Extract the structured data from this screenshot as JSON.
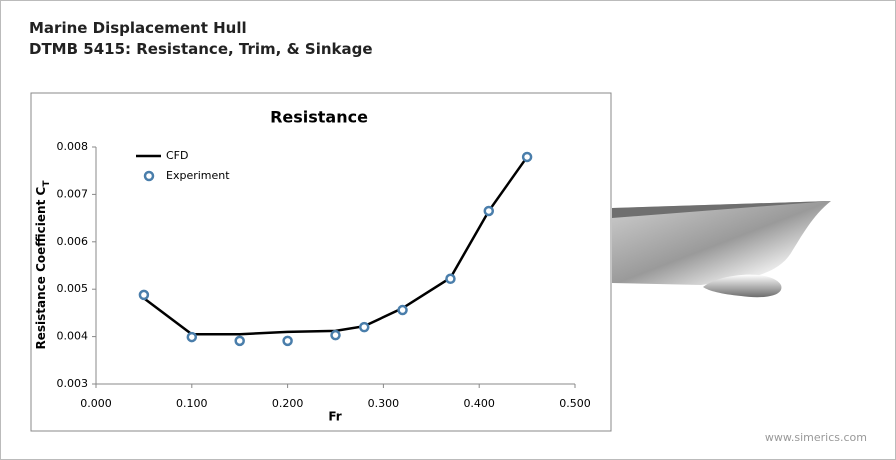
{
  "header": {
    "title": "Marine Displacement Hull",
    "subtitle": "DTMB 5415: Resistance, Trim, & Sinkage"
  },
  "chart_data": {
    "type": "line",
    "title": "Resistance",
    "xlabel": "Fr",
    "ylabel": "Resistance Coefficient C",
    "ylabel_subscript": "T",
    "xlim": [
      0,
      0.5
    ],
    "ylim": [
      0.003,
      0.008
    ],
    "xticks": [
      {
        "value": 0,
        "label": "0.000"
      },
      {
        "value": 0.1,
        "label": "0.100"
      },
      {
        "value": 0.2,
        "label": "0.200"
      },
      {
        "value": 0.3,
        "label": "0.300"
      },
      {
        "value": 0.4,
        "label": "0.400"
      },
      {
        "value": 0.5,
        "label": "0.500"
      }
    ],
    "yticks": [
      0.003,
      0.004,
      0.005,
      0.006,
      0.007,
      0.008
    ],
    "legend": "top-left",
    "series": [
      {
        "name": "CFD",
        "color": "#000000",
        "style": "line",
        "x": [
          0.05,
          0.1,
          0.15,
          0.2,
          0.25,
          0.28,
          0.32,
          0.37,
          0.41,
          0.45
        ],
        "values": [
          0.00481,
          0.00405,
          0.00405,
          0.0041,
          0.00412,
          0.00422,
          0.0046,
          0.00524,
          0.00665,
          0.00779
        ]
      },
      {
        "name": "Experiment",
        "color": "#4a7eab",
        "style": "marker",
        "x": [
          0.05,
          0.1,
          0.15,
          0.2,
          0.25,
          0.28,
          0.32,
          0.37,
          0.41,
          0.45
        ],
        "values": [
          0.00488,
          0.00399,
          0.00391,
          0.00391,
          0.00403,
          0.0042,
          0.00456,
          0.00522,
          0.00665,
          0.00779
        ]
      }
    ]
  },
  "footer": {
    "watermark": "www.simerics.com"
  }
}
